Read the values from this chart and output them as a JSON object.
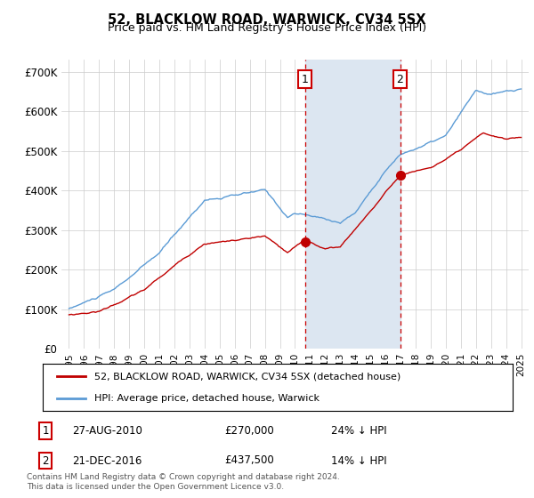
{
  "title": "52, BLACKLOW ROAD, WARWICK, CV34 5SX",
  "subtitle": "Price paid vs. HM Land Registry's House Price Index (HPI)",
  "legend_entries": [
    "52, BLACKLOW ROAD, WARWICK, CV34 5SX (detached house)",
    "HPI: Average price, detached house, Warwick"
  ],
  "annotation1": {
    "label": "1",
    "x_year": 2010.66,
    "price": 270000,
    "text1": "27-AUG-2010",
    "text2": "£270,000",
    "text3": "24% ↓ HPI"
  },
  "annotation2": {
    "label": "2",
    "x_year": 2016.97,
    "price": 437500,
    "text1": "21-DEC-2016",
    "text2": "£437,500",
    "text3": "14% ↓ HPI"
  },
  "shade_start": 2010.66,
  "shade_end": 2016.97,
  "ylim": [
    0,
    730000
  ],
  "xlim_start": 1994.5,
  "xlim_end": 2025.5,
  "yticks": [
    0,
    100000,
    200000,
    300000,
    400000,
    500000,
    600000,
    700000
  ],
  "ytick_labels": [
    "£0",
    "£100K",
    "£200K",
    "£300K",
    "£400K",
    "£500K",
    "£600K",
    "£700K"
  ],
  "xticks": [
    1995,
    1996,
    1997,
    1998,
    1999,
    2000,
    2001,
    2002,
    2003,
    2004,
    2005,
    2006,
    2007,
    2008,
    2009,
    2010,
    2011,
    2012,
    2013,
    2014,
    2015,
    2016,
    2017,
    2018,
    2019,
    2020,
    2021,
    2022,
    2023,
    2024,
    2025
  ],
  "hpi_color": "#5b9bd5",
  "price_color": "#c00000",
  "shade_color": "#dce6f1",
  "dashed_color": "#cc0000",
  "background_color": "#ffffff",
  "footnote": "Contains HM Land Registry data © Crown copyright and database right 2024.\nThis data is licensed under the Open Government Licence v3.0."
}
